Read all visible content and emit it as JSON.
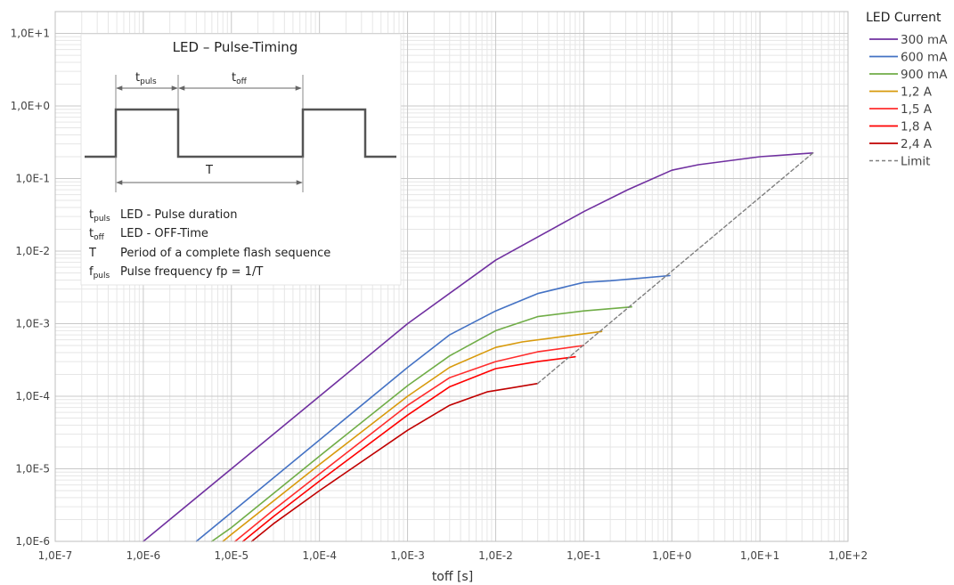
{
  "chart_data": {
    "type": "line",
    "xscale": "log",
    "yscale": "log",
    "xlabel": "toff [s]",
    "ylabel": "",
    "xlim": [
      1e-07,
      100
    ],
    "ylim": [
      1e-06,
      20
    ],
    "grid": true,
    "x_ticks": [
      {
        "value": 1e-07,
        "label": "1,0E-7"
      },
      {
        "value": 1e-06,
        "label": "1,0E-6"
      },
      {
        "value": 1e-05,
        "label": "1,0E-5"
      },
      {
        "value": 0.0001,
        "label": "1,0E-4"
      },
      {
        "value": 0.001,
        "label": "1,0E-3"
      },
      {
        "value": 0.01,
        "label": "1,0E-2"
      },
      {
        "value": 0.1,
        "label": "1,0E-1"
      },
      {
        "value": 1,
        "label": "1,0E+0"
      },
      {
        "value": 10,
        "label": "1,0E+1"
      },
      {
        "value": 100,
        "label": "1,0E+2"
      }
    ],
    "y_ticks": [
      {
        "value": 1e-06,
        "label": "1,0E-6"
      },
      {
        "value": 1e-05,
        "label": "1,0E-5"
      },
      {
        "value": 0.0001,
        "label": "1,0E-4"
      },
      {
        "value": 0.001,
        "label": "1,0E-3"
      },
      {
        "value": 0.01,
        "label": "1,0E-2"
      },
      {
        "value": 0.1,
        "label": "1,0E-1"
      },
      {
        "value": 1,
        "label": "1,0E+0"
      },
      {
        "value": 10,
        "label": "1,0E+1"
      }
    ],
    "legend": {
      "title": "LED Current",
      "position": "right"
    },
    "series": [
      {
        "name": "300 mA",
        "color": "#7030a0",
        "dashed": false,
        "x": [
          1e-06,
          1e-05,
          0.0001,
          0.001,
          0.01,
          0.1,
          0.316,
          1,
          2,
          10,
          40
        ],
        "y": [
          1e-06,
          1e-05,
          0.0001,
          0.001,
          0.0075,
          0.035,
          0.07,
          0.13,
          0.155,
          0.2,
          0.225
        ]
      },
      {
        "name": "600 mA",
        "color": "#4472c4",
        "dashed": false,
        "x": [
          4e-06,
          1e-05,
          0.0001,
          0.001,
          0.003,
          0.01,
          0.03,
          0.1,
          0.2,
          0.5,
          0.95
        ],
        "y": [
          1e-06,
          2.5e-06,
          2.5e-05,
          0.00025,
          0.0007,
          0.0015,
          0.0026,
          0.0037,
          0.0039,
          0.0043,
          0.0046
        ]
      },
      {
        "name": "900 mA",
        "color": "#70ad47",
        "dashed": false,
        "x": [
          6e-06,
          1e-05,
          0.0001,
          0.001,
          0.003,
          0.01,
          0.03,
          0.1,
          0.35
        ],
        "y": [
          1e-06,
          1.55e-06,
          1.5e-05,
          0.00014,
          0.00036,
          0.0008,
          0.00125,
          0.0015,
          0.0017
        ]
      },
      {
        "name": "1,2 A",
        "color": "#d89a0c",
        "dashed": false,
        "x": [
          8e-06,
          1e-05,
          0.0001,
          0.001,
          0.003,
          0.01,
          0.02,
          0.05,
          0.16
        ],
        "y": [
          1e-06,
          1.25e-06,
          1.15e-05,
          0.0001,
          0.00025,
          0.00047,
          0.00056,
          0.00065,
          0.00078
        ]
      },
      {
        "name": "1,5 A",
        "color": "#ff2d2d",
        "dashed": false,
        "x": [
          1.1e-05,
          3e-05,
          0.0001,
          0.001,
          0.003,
          0.01,
          0.03,
          0.1
        ],
        "y": [
          1e-06,
          2.7e-06,
          8.5e-06,
          7.5e-05,
          0.00018,
          0.0003,
          0.00041,
          0.0005
        ]
      },
      {
        "name": "1,8 A",
        "color": "#ff0000",
        "dashed": false,
        "x": [
          1.35e-05,
          3e-05,
          0.0001,
          0.001,
          0.003,
          0.01,
          0.03,
          0.08
        ],
        "y": [
          1e-06,
          2.2e-06,
          6.8e-06,
          5.5e-05,
          0.000135,
          0.00024,
          0.0003,
          0.00035
        ]
      },
      {
        "name": "2,4 A",
        "color": "#c00000",
        "dashed": false,
        "x": [
          1.7e-05,
          3e-05,
          0.0001,
          0.001,
          0.003,
          0.008,
          0.015,
          0.03
        ],
        "y": [
          1e-06,
          1.75e-06,
          5e-06,
          3.4e-05,
          7.5e-05,
          0.000115,
          0.00013,
          0.00015
        ]
      },
      {
        "name": "Limit",
        "color": "#7f7f7f",
        "dashed": true,
        "x": [
          0.03,
          40
        ],
        "y": [
          0.00015,
          0.225
        ]
      }
    ],
    "inset": {
      "title": "LED – Pulse-Timing",
      "t_puls_main": "t",
      "t_puls_sub": "puls",
      "t_off_main": "t",
      "t_off_sub": "off",
      "period_label": "T",
      "definitions": [
        {
          "sym": "t",
          "sub": "puls",
          "text": "LED - Pulse duration"
        },
        {
          "sym": "t",
          "sub": "off",
          "text": "LED - OFF-Time"
        },
        {
          "sym": "T",
          "sub": "",
          "text": "Period of a complete flash sequence"
        },
        {
          "sym": "f",
          "sub": "puls",
          "text": "Pulse frequency fp = 1/T"
        }
      ]
    }
  }
}
